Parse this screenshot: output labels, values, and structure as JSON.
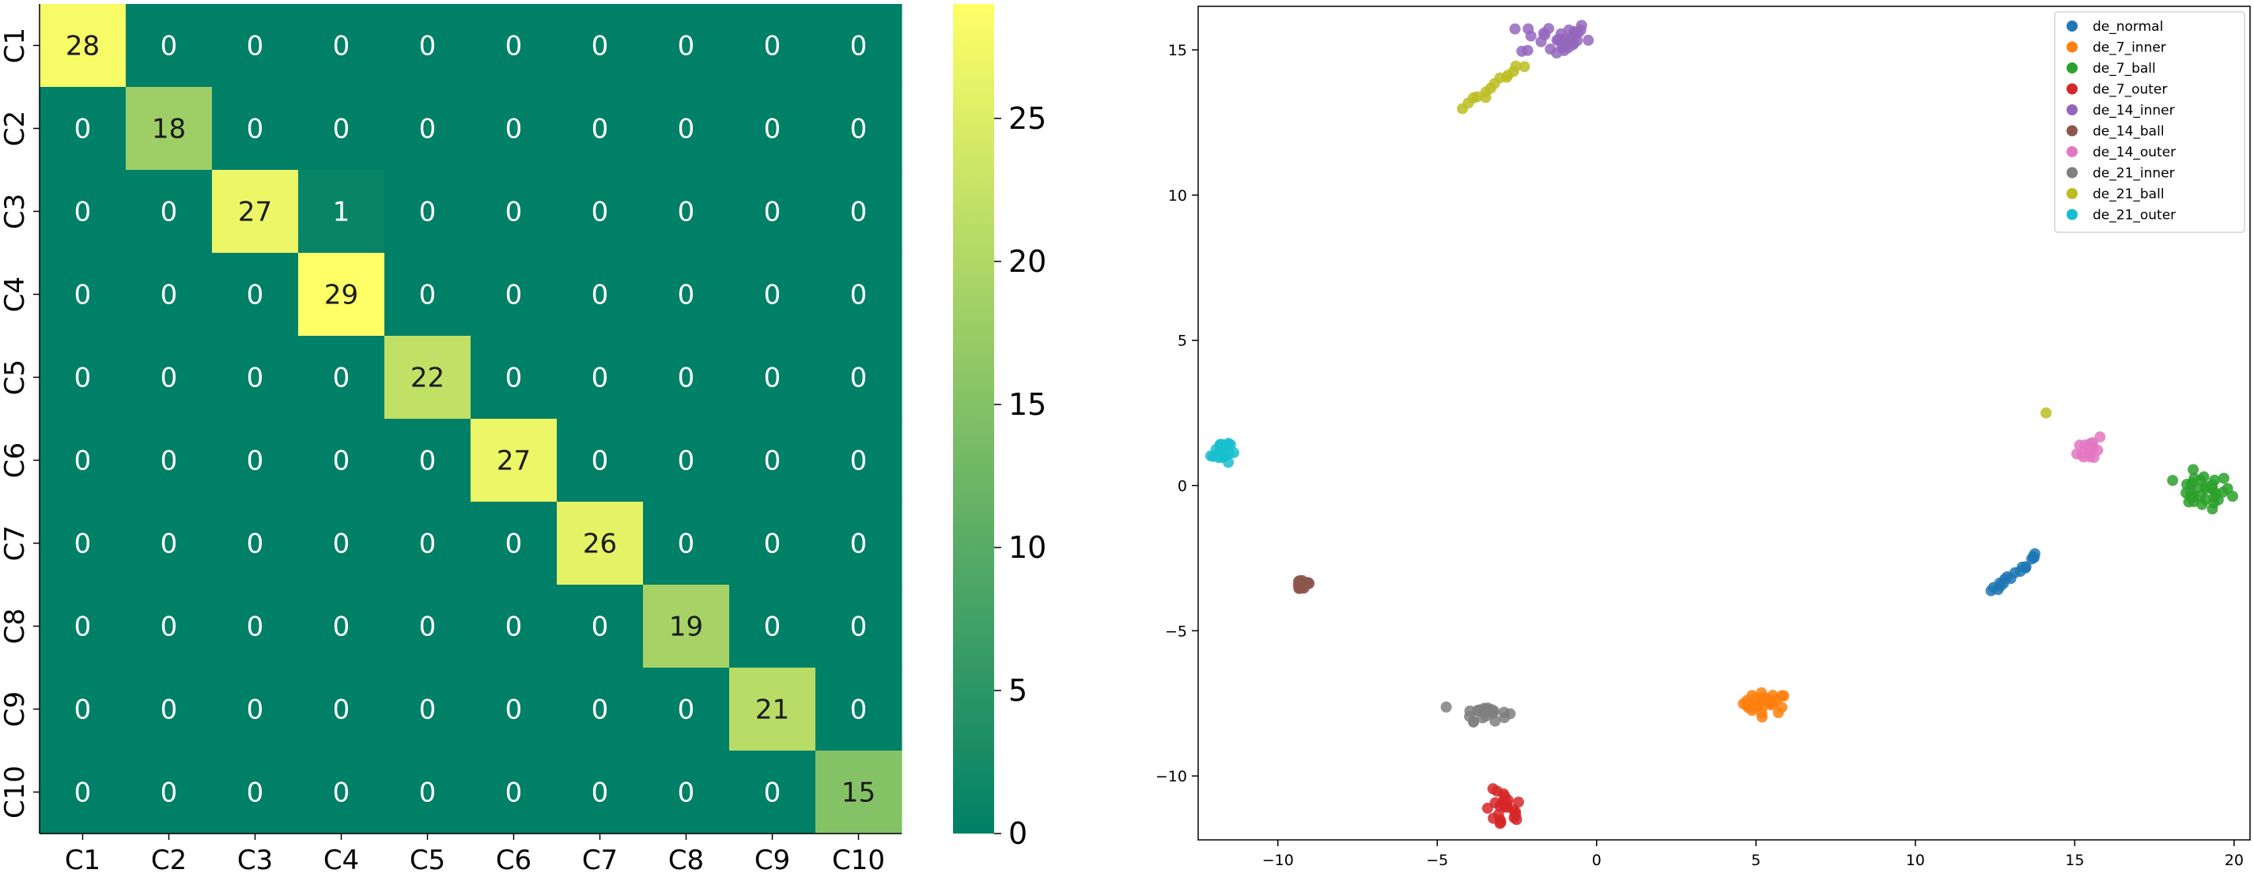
{
  "chart_data": [
    {
      "type": "heatmap",
      "title": "",
      "row_labels": [
        "C1",
        "C2",
        "C3",
        "C4",
        "C5",
        "C6",
        "C7",
        "C8",
        "C9",
        "C10"
      ],
      "col_labels": [
        "C1",
        "C2",
        "C3",
        "C4",
        "C5",
        "C6",
        "C7",
        "C8",
        "C9",
        "C10"
      ],
      "matrix": [
        [
          28,
          0,
          0,
          0,
          0,
          0,
          0,
          0,
          0,
          0
        ],
        [
          0,
          18,
          0,
          0,
          0,
          0,
          0,
          0,
          0,
          0
        ],
        [
          0,
          0,
          27,
          1,
          0,
          0,
          0,
          0,
          0,
          0
        ],
        [
          0,
          0,
          0,
          29,
          0,
          0,
          0,
          0,
          0,
          0
        ],
        [
          0,
          0,
          0,
          0,
          22,
          0,
          0,
          0,
          0,
          0
        ],
        [
          0,
          0,
          0,
          0,
          0,
          27,
          0,
          0,
          0,
          0
        ],
        [
          0,
          0,
          0,
          0,
          0,
          0,
          26,
          0,
          0,
          0
        ],
        [
          0,
          0,
          0,
          0,
          0,
          0,
          0,
          19,
          0,
          0
        ],
        [
          0,
          0,
          0,
          0,
          0,
          0,
          0,
          0,
          21,
          0
        ],
        [
          0,
          0,
          0,
          0,
          0,
          0,
          0,
          0,
          0,
          15
        ]
      ],
      "colormap": "summer",
      "color_min": "#008066",
      "color_max": "#ffff66",
      "colorbar": {
        "min": 0,
        "max": 29,
        "ticks": [
          0,
          5,
          10,
          15,
          20,
          25
        ]
      }
    },
    {
      "type": "scatter",
      "title": "",
      "xlabel": "",
      "ylabel": "",
      "xlim": [
        -12.5,
        20.5
      ],
      "ylim": [
        -12.2,
        16.5
      ],
      "xticks": [
        -10,
        -5,
        0,
        5,
        10,
        15,
        20
      ],
      "yticks": [
        -10,
        -5,
        0,
        5,
        10,
        15
      ],
      "legend_position": "top-right",
      "series": [
        {
          "name": "de_normal",
          "color": "#1f77b4",
          "shape": "line",
          "from": [
            12.4,
            -3.7
          ],
          "to": [
            13.8,
            -2.4
          ],
          "count": 18,
          "spread": 0.08
        },
        {
          "name": "de_7_inner",
          "color": "#ff7f0e",
          "shape": "cluster",
          "center": [
            5.3,
            -7.5
          ],
          "sx": 0.35,
          "sy": 0.18,
          "count": 30
        },
        {
          "name": "de_7_ball",
          "color": "#2ca02c",
          "shape": "cluster",
          "center": [
            19.0,
            -0.2
          ],
          "sx": 0.45,
          "sy": 0.3,
          "count": 32
        },
        {
          "name": "de_7_outer",
          "color": "#d62728",
          "shape": "cluster",
          "center": [
            -2.9,
            -11.2
          ],
          "sx": 0.3,
          "sy": 0.35,
          "count": 24
        },
        {
          "name": "de_14_inner",
          "color": "#9467bd",
          "shape": "cluster",
          "center": [
            -1.3,
            15.4
          ],
          "sx": 0.55,
          "sy": 0.3,
          "count": 34
        },
        {
          "name": "de_14_ball",
          "color": "#8c564b",
          "shape": "cluster",
          "center": [
            -9.2,
            -3.4
          ],
          "sx": 0.15,
          "sy": 0.12,
          "count": 16
        },
        {
          "name": "de_14_outer",
          "color": "#e377c2",
          "shape": "cluster",
          "center": [
            15.5,
            1.3
          ],
          "sx": 0.2,
          "sy": 0.25,
          "count": 16
        },
        {
          "name": "de_21_inner",
          "color": "#7f7f7f",
          "shape": "cluster",
          "center": [
            -3.5,
            -7.8
          ],
          "sx": 0.35,
          "sy": 0.15,
          "count": 22
        },
        {
          "name": "de_21_ball",
          "color": "#bcbd22",
          "shape": "line",
          "from": [
            -4.2,
            13.0
          ],
          "to": [
            -2.3,
            14.5
          ],
          "count": 14,
          "spread": 0.05,
          "extra": [
            14.1,
            2.5
          ]
        },
        {
          "name": "de_21_outer",
          "color": "#17becf",
          "shape": "cluster",
          "center": [
            -11.8,
            1.2
          ],
          "sx": 0.15,
          "sy": 0.25,
          "count": 20
        }
      ]
    }
  ]
}
